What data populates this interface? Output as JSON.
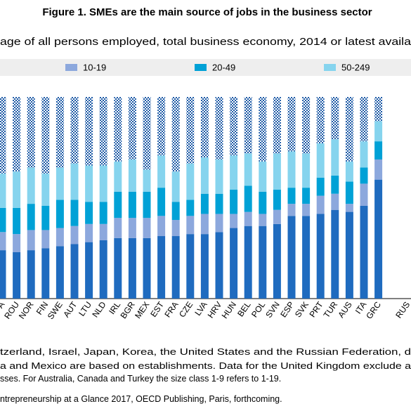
{
  "chart_data": {
    "type": "stacked-bar",
    "title": "Figure 1.  SMEs are the main source of jobs in the business sector",
    "subtitle": "age of all persons employed, total business economy, 2014 or latest availa",
    "categories": [
      "A",
      "ROU",
      "NOR",
      "FIN",
      "SWE",
      "AUT",
      "LTU",
      "NLD",
      "IRL",
      "BGR",
      "MEX",
      "EST",
      "FRA",
      "CZE",
      "LVA",
      "HRV",
      "HUN",
      "BEL",
      "POL",
      "SVN",
      "ESP",
      "SVK",
      "PRT",
      "TUR",
      "AUS",
      "ITA",
      "GRC",
      null,
      "RUS"
    ],
    "series": [
      {
        "color": "#1f6bbf",
        "values": [
          24,
          23,
          24,
          25,
          26,
          27,
          28,
          29,
          30,
          30,
          30,
          31,
          31,
          32,
          32,
          33,
          35,
          36,
          36,
          37,
          41,
          41,
          42,
          44,
          43,
          46,
          59,
          null,
          null
        ]
      },
      {
        "name": "10-19",
        "color": "#8ca8dd",
        "values": [
          9,
          9,
          10,
          9,
          9,
          9,
          9,
          8,
          10,
          10,
          10,
          10,
          8,
          9,
          10,
          9,
          7,
          7,
          6,
          7,
          6,
          6,
          9,
          8,
          4,
          11,
          10,
          null,
          null
        ]
      },
      {
        "name": "20-49",
        "color": "#00a1d6",
        "values": [
          12,
          13,
          13,
          12,
          14,
          13,
          11,
          11,
          13,
          13,
          13,
          14,
          9,
          8,
          10,
          10,
          12,
          13,
          11,
          10,
          8,
          8,
          9,
          9,
          11,
          8,
          9,
          null,
          null
        ]
      },
      {
        "name": "50-249",
        "color": "#86d4ee",
        "values": [
          17,
          18,
          18,
          16,
          16,
          18,
          18,
          18,
          15,
          16,
          11,
          16,
          15,
          18,
          18,
          17,
          17,
          16,
          15,
          18,
          18,
          17,
          17,
          18,
          10,
          13,
          10,
          null,
          null
        ]
      },
      {
        "color": "#1d5aa6",
        "pattern": "checker",
        "values": [
          38,
          37,
          35,
          38,
          35,
          33,
          34,
          34,
          32,
          31,
          36,
          29,
          37,
          33,
          30,
          31,
          29,
          28,
          32,
          28,
          27,
          28,
          23,
          21,
          32,
          22,
          12,
          null,
          null
        ]
      }
    ],
    "ylim": [
      0,
      100
    ],
    "notes": [
      "tzerland, Israel, Japan, Korea, the United States and the Russian Federation, d",
      "a and Mexico are based on establishments. Data for the United Kingdom exclude a",
      "sses. For Australia, Canada and Turkey the size class 1-9 refers to 1-19.",
      "ntrepreneurship at a Glance 2017, OECD Publishing, Paris, forthcoming."
    ]
  }
}
